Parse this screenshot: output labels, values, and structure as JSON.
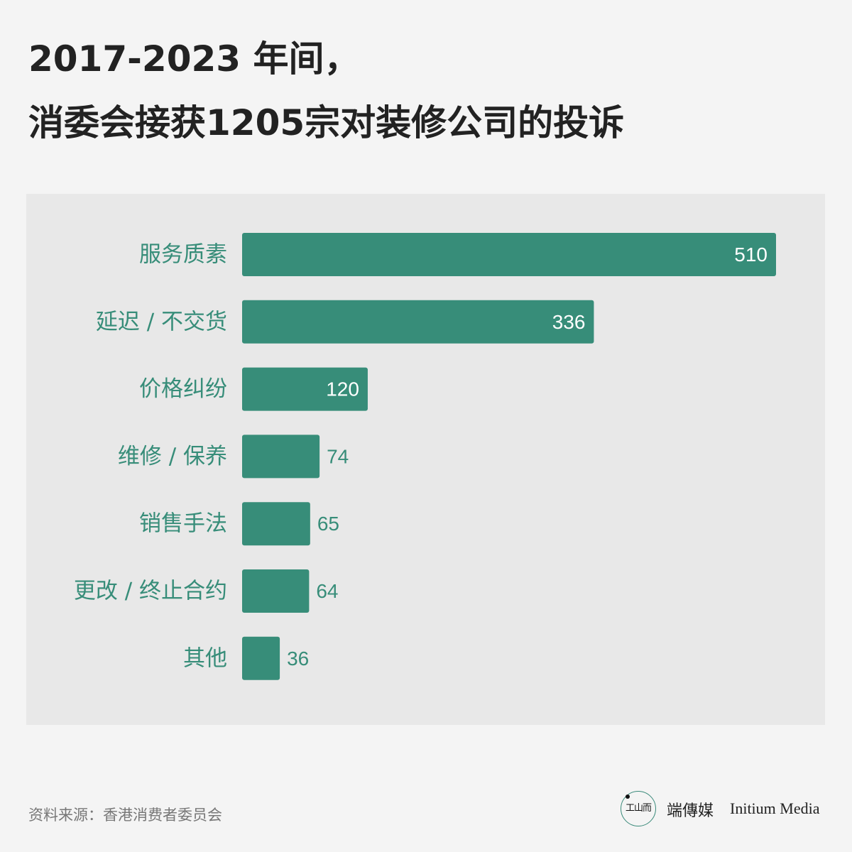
{
  "title": {
    "line1": "2017-2023 年间，",
    "line2": "消委会接获1205宗对装修公司的投诉"
  },
  "chart_data": {
    "type": "bar",
    "orientation": "horizontal",
    "categories": [
      "服务质素",
      "延迟 / 不交货",
      "价格纠纷",
      "维修 / 保养",
      "销售手法",
      "更改 / 终止合约",
      "其他"
    ],
    "values": [
      510,
      336,
      120,
      74,
      65,
      64,
      36
    ],
    "value_labels": [
      "510",
      "336",
      "120",
      "74",
      "65",
      "64",
      "36"
    ],
    "bar_color": "#378d79",
    "label_color": "#378d79",
    "inside_label_color": "#ffffff",
    "grid": false
  },
  "footer": {
    "source": "资料来源：香港消费者委员会",
    "brand_cn": "端傳媒",
    "brand_en": "Initium Media",
    "logo_text": "工山而"
  }
}
